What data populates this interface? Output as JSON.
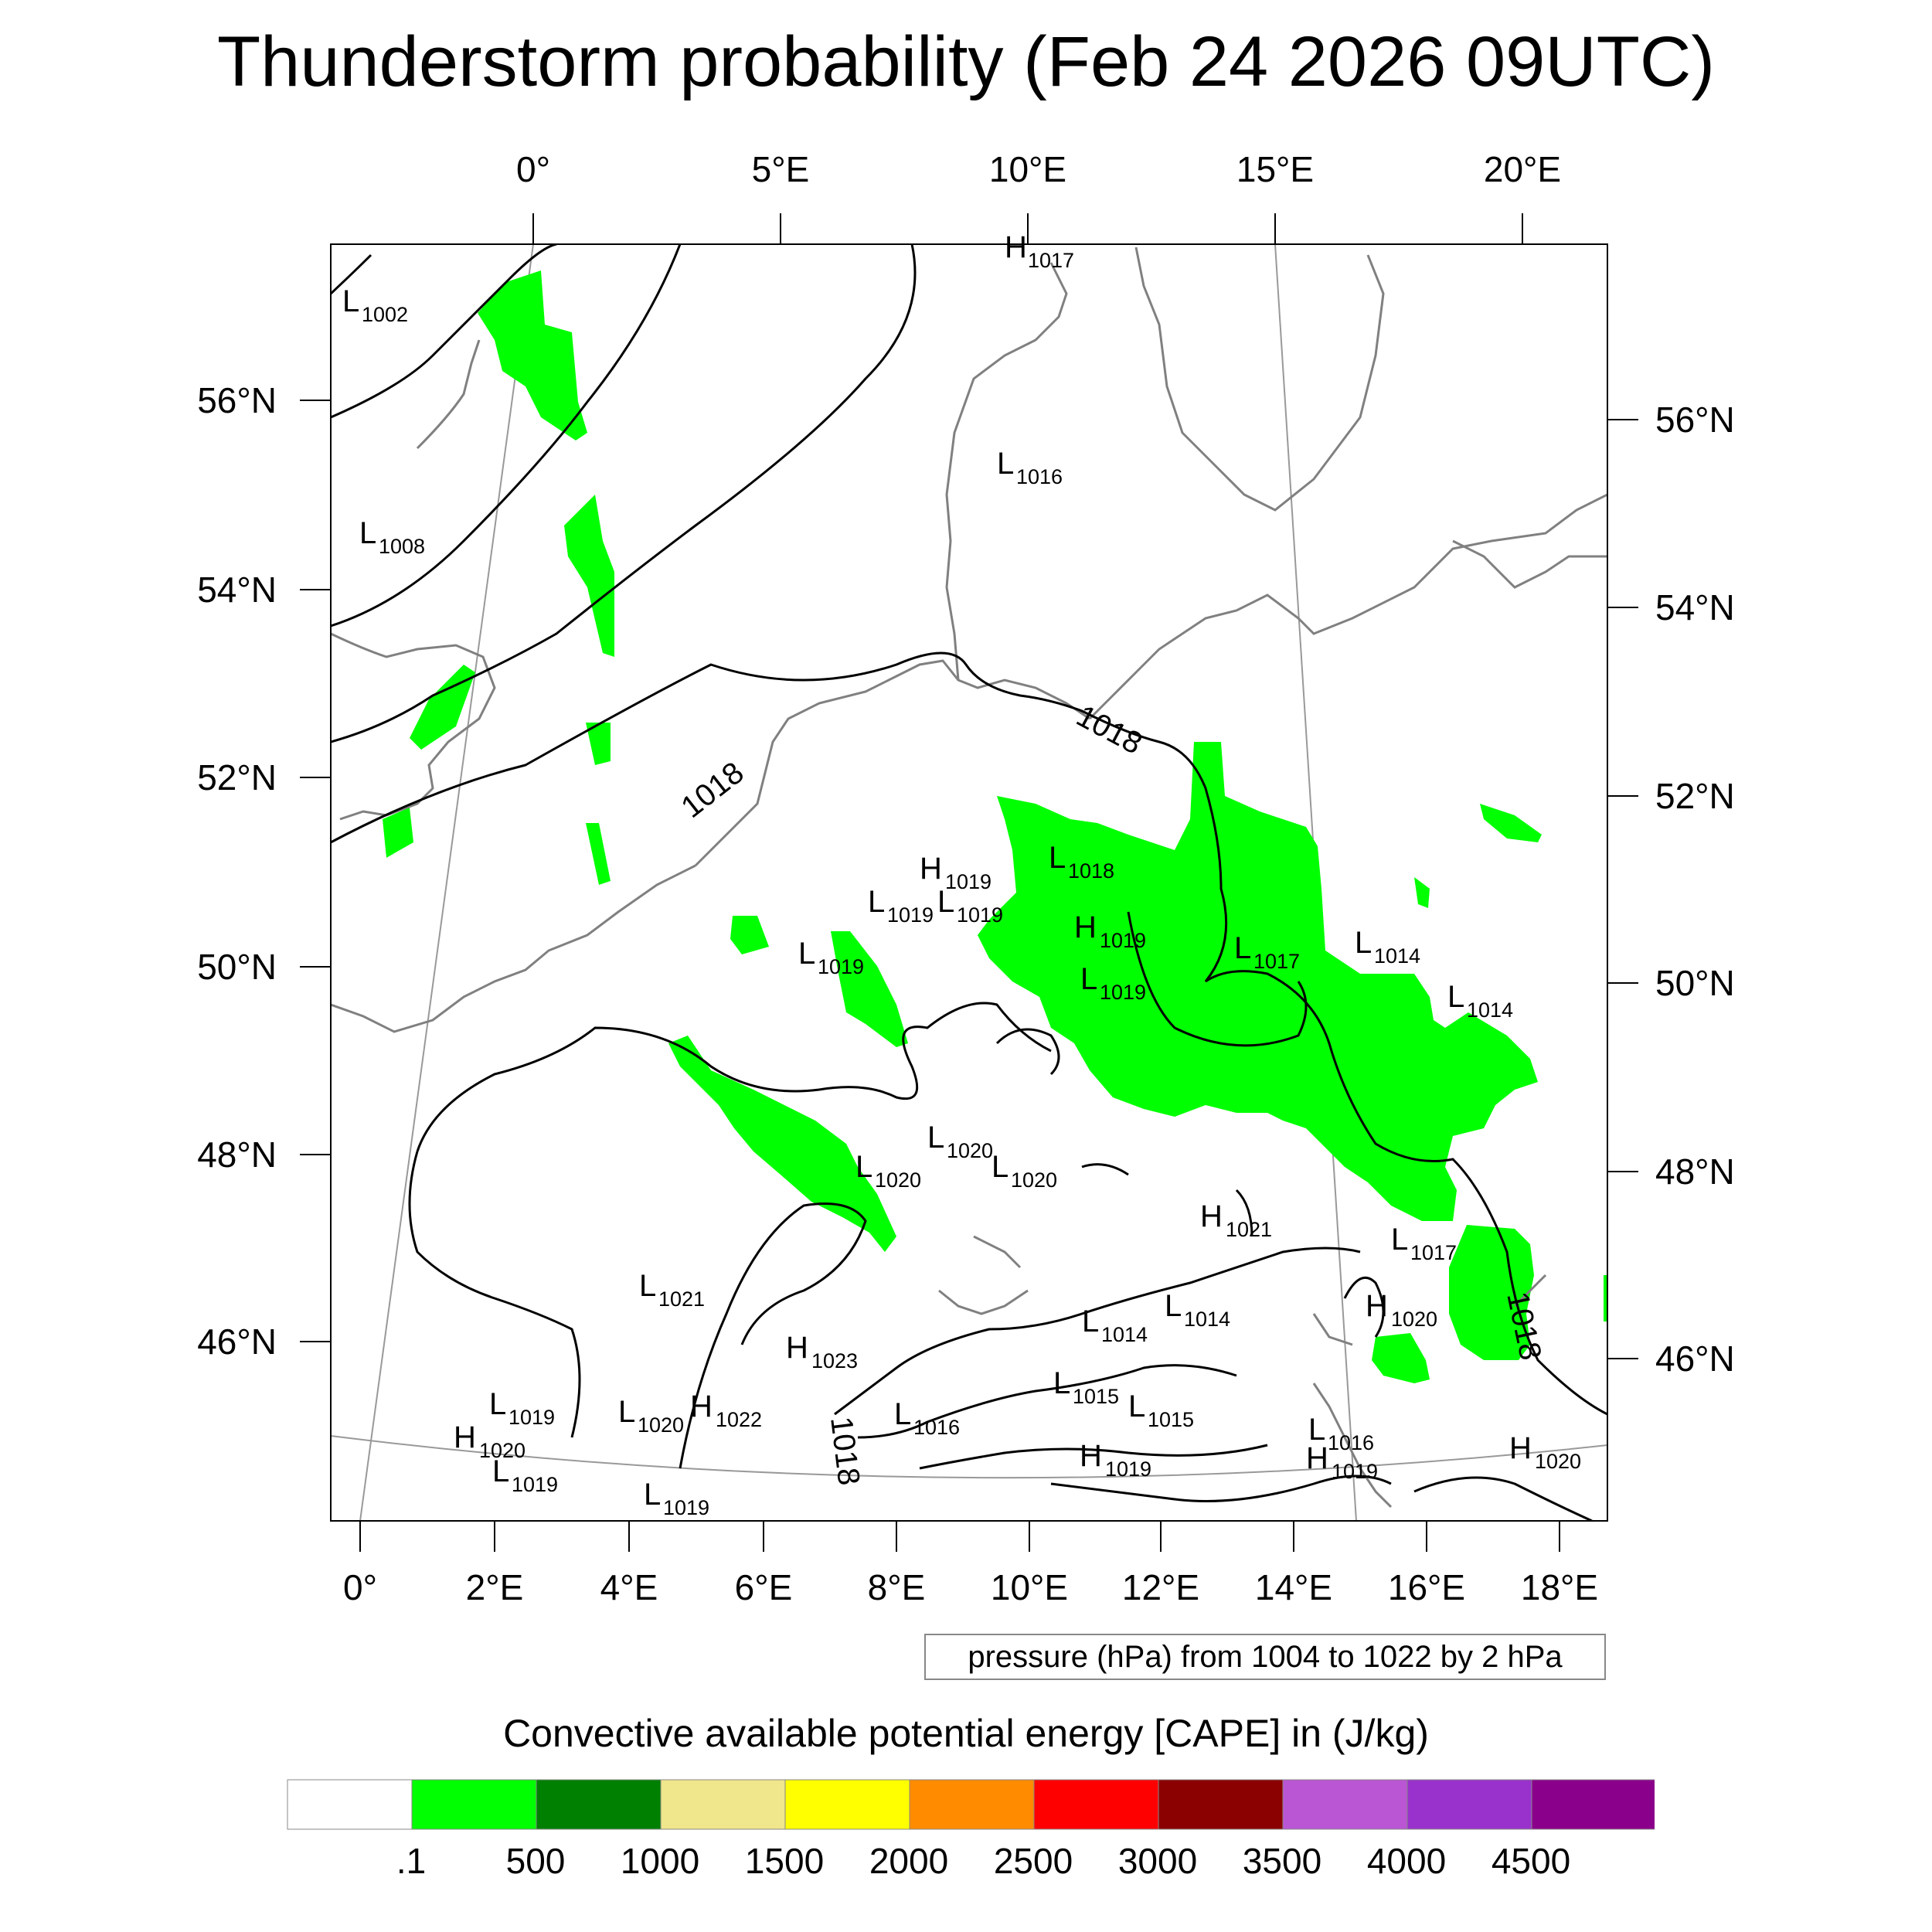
{
  "title": "Thunderstorm probability (Feb 24 2026 09UTC)",
  "top_lon_labels": [
    "0°",
    "5°E",
    "10°E",
    "15°E",
    "20°E"
  ],
  "bottom_lon_labels": [
    "0°",
    "2°E",
    "4°E",
    "6°E",
    "8°E",
    "10°E",
    "12°E",
    "14°E",
    "16°E",
    "18°E"
  ],
  "left_lat_labels": [
    "56°N",
    "54°N",
    "52°N",
    "50°N",
    "48°N",
    "46°N"
  ],
  "right_lat_labels": [
    "56°N",
    "54°N",
    "52°N",
    "50°N",
    "48°N",
    "46°N"
  ],
  "contour_labels": [
    "1018",
    "1018",
    "1018",
    "1018"
  ],
  "pressure_systems": [
    {
      "type": "H",
      "value": "1017"
    },
    {
      "type": "L",
      "value": "1002"
    },
    {
      "type": "L",
      "value": "1008"
    },
    {
      "type": "L",
      "value": "1016"
    },
    {
      "type": "H",
      "value": "1019"
    },
    {
      "type": "L",
      "value": "1018"
    },
    {
      "type": "L",
      "value": "1019"
    },
    {
      "type": "L",
      "value": "1019"
    },
    {
      "type": "H",
      "value": "1019"
    },
    {
      "type": "L",
      "value": "1019"
    },
    {
      "type": "L",
      "value": "1019"
    },
    {
      "type": "L",
      "value": "1017"
    },
    {
      "type": "L",
      "value": "1014"
    },
    {
      "type": "L",
      "value": "1014"
    },
    {
      "type": "L",
      "value": "1020"
    },
    {
      "type": "L",
      "value": "1020"
    },
    {
      "type": "L",
      "value": "1020"
    },
    {
      "type": "H",
      "value": "1021"
    },
    {
      "type": "L",
      "value": "1017"
    },
    {
      "type": "L",
      "value": "1021"
    },
    {
      "type": "H",
      "value": "1020"
    },
    {
      "type": "L",
      "value": "1014"
    },
    {
      "type": "L",
      "value": "1014"
    },
    {
      "type": "H",
      "value": "1023"
    },
    {
      "type": "L",
      "value": "1015"
    },
    {
      "type": "L",
      "value": "1015"
    },
    {
      "type": "L",
      "value": "1019"
    },
    {
      "type": "L",
      "value": "1020"
    },
    {
      "type": "H",
      "value": "1022"
    },
    {
      "type": "L",
      "value": "1016"
    },
    {
      "type": "H",
      "value": "1020"
    },
    {
      "type": "L",
      "value": "1019"
    },
    {
      "type": "L",
      "value": "1016"
    },
    {
      "type": "H",
      "value": "1019"
    },
    {
      "type": "H",
      "value": "1019"
    },
    {
      "type": "L",
      "value": "1019"
    },
    {
      "type": "H",
      "value": "1020"
    }
  ],
  "info_box": "pressure (hPa) from 1004 to 1022 by 2 hPa",
  "colorbar": {
    "title": "Convective available potential energy [CAPE] in (J/kg)",
    "colors": [
      "#ffffff",
      "#00ff00",
      "#008000",
      "#f0e68c",
      "#ffff00",
      "#ff8c00",
      "#ff0000",
      "#8b0000",
      "#ba55d3",
      "#9932cc",
      "#8b008b"
    ],
    "labels": [
      ".1",
      "500",
      "1000",
      "1500",
      "2000",
      "2500",
      "3000",
      "3500",
      "4000",
      "4500"
    ]
  },
  "colors": {
    "cape_green": "#00ff00",
    "coastline": "#808080",
    "isobar": "#000000",
    "graticule": "#999999"
  }
}
